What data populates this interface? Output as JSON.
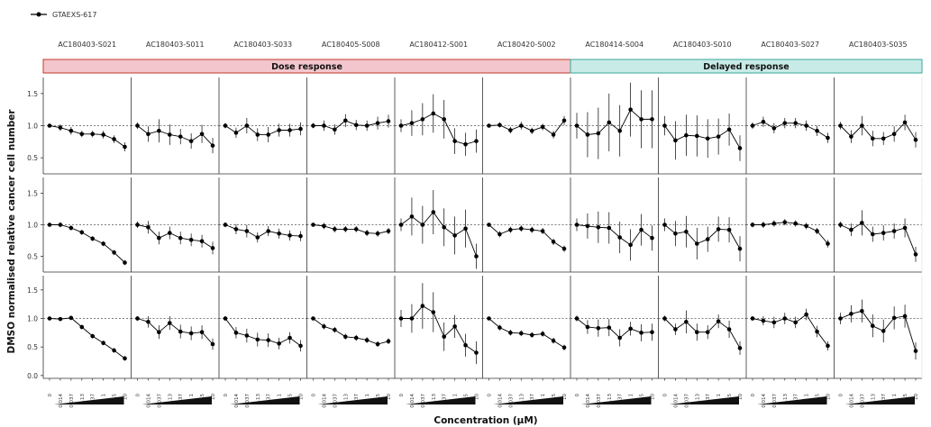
{
  "legend": {
    "label": "GTAEXS-617"
  },
  "row_labels": [
    "",
    "",
    ""
  ],
  "groups": [
    {
      "label": "Dose response",
      "fill": "#f2c6cc",
      "border": "#c0392b",
      "first": 0,
      "last": 5
    },
    {
      "label": "Delayed response",
      "fill": "#c8ebe7",
      "border": "#39a99a",
      "first": 6,
      "last": 9
    }
  ],
  "colors": {
    "series": "#000000",
    "reference": "#555555",
    "panel_border": "#333333",
    "dose_wedge": "#111111"
  },
  "chart_data": {
    "type": "line",
    "xlabel": "Concentration (μM)",
    "ylabel": "DMSO normalised relative cancer cell number",
    "ylim": [
      0,
      1.75
    ],
    "yticks": [
      0.0,
      0.5,
      1.0,
      1.5
    ],
    "reference_y": 1.0,
    "x": [
      "0",
      "0.014",
      "0.037",
      "0.13",
      "0.37",
      "1",
      "3.5",
      "10"
    ],
    "x_tick_labels": [
      "0",
      "0.014",
      "0.037",
      "0.13",
      "0.37",
      "1",
      "3.5",
      "10"
    ],
    "grid": false,
    "legend_placement": "top-left",
    "series_name": "GTAEXS-617",
    "columns": [
      "AC180403-S021",
      "AC180403-S011",
      "AC180403-S033",
      "AC180405-S008",
      "AC180412-S001",
      "AC180420-S002",
      "AC180414-S004",
      "AC180403-S010",
      "AC180403-S027",
      "AC180403-S035"
    ],
    "rows": [
      {
        "ylim": [
          0.25,
          1.75
        ],
        "yticks": [
          0.5,
          1.0,
          1.5
        ],
        "panels": [
          {
            "values": [
              1.0,
              0.97,
              0.92,
              0.87,
              0.87,
              0.86,
              0.79,
              0.67
            ],
            "errors": [
              0.02,
              0.05,
              0.06,
              0.05,
              0.05,
              0.06,
              0.06,
              0.07
            ]
          },
          {
            "values": [
              1.0,
              0.87,
              0.92,
              0.86,
              0.83,
              0.76,
              0.87,
              0.69
            ],
            "errors": [
              0.05,
              0.12,
              0.18,
              0.16,
              0.12,
              0.12,
              0.14,
              0.12
            ]
          },
          {
            "values": [
              1.0,
              0.89,
              1.0,
              0.86,
              0.86,
              0.93,
              0.93,
              0.95
            ],
            "errors": [
              0.04,
              0.08,
              0.12,
              0.1,
              0.12,
              0.1,
              0.1,
              0.1
            ]
          },
          {
            "values": [
              1.0,
              1.0,
              0.94,
              1.08,
              1.01,
              1.0,
              1.04,
              1.07
            ],
            "errors": [
              0.04,
              0.08,
              0.08,
              0.1,
              0.08,
              0.08,
              0.1,
              0.1
            ]
          },
          {
            "values": [
              1.0,
              1.04,
              1.1,
              1.19,
              1.1,
              0.76,
              0.71,
              0.76
            ],
            "errors": [
              0.1,
              0.2,
              0.25,
              0.3,
              0.3,
              0.2,
              0.18,
              0.18
            ]
          },
          {
            "values": [
              1.0,
              1.01,
              0.93,
              1.0,
              0.92,
              0.98,
              0.86,
              1.08
            ],
            "errors": [
              0.02,
              0.04,
              0.05,
              0.06,
              0.05,
              0.05,
              0.06,
              0.07
            ]
          },
          {
            "values": [
              1.0,
              0.86,
              0.88,
              1.05,
              0.92,
              1.25,
              1.1,
              1.1
            ],
            "errors": [
              0.2,
              0.35,
              0.4,
              0.45,
              0.4,
              0.42,
              0.45,
              0.45
            ]
          },
          {
            "values": [
              1.0,
              0.77,
              0.85,
              0.84,
              0.8,
              0.83,
              0.94,
              0.65
            ],
            "errors": [
              0.15,
              0.3,
              0.32,
              0.32,
              0.3,
              0.28,
              0.25,
              0.2
            ]
          },
          {
            "values": [
              1.0,
              1.06,
              0.96,
              1.04,
              1.04,
              1.0,
              0.92,
              0.81
            ],
            "errors": [
              0.05,
              0.08,
              0.08,
              0.08,
              0.08,
              0.08,
              0.08,
              0.08
            ]
          },
          {
            "values": [
              1.0,
              0.83,
              1.0,
              0.8,
              0.8,
              0.87,
              1.05,
              0.78
            ],
            "errors": [
              0.06,
              0.1,
              0.15,
              0.12,
              0.1,
              0.12,
              0.12,
              0.12
            ]
          }
        ]
      },
      {
        "ylim": [
          0.25,
          1.75
        ],
        "yticks": [
          0.5,
          1.0,
          1.5
        ],
        "panels": [
          {
            "values": [
              1.0,
              1.0,
              0.95,
              0.88,
              0.78,
              0.7,
              0.56,
              0.4
            ],
            "errors": [
              0.03,
              0.04,
              0.04,
              0.04,
              0.04,
              0.04,
              0.04,
              0.04
            ]
          },
          {
            "values": [
              1.0,
              0.96,
              0.79,
              0.87,
              0.79,
              0.76,
              0.74,
              0.63
            ],
            "errors": [
              0.05,
              0.1,
              0.1,
              0.1,
              0.1,
              0.1,
              0.1,
              0.1
            ]
          },
          {
            "values": [
              1.0,
              0.93,
              0.9,
              0.8,
              0.9,
              0.86,
              0.83,
              0.82
            ],
            "errors": [
              0.04,
              0.08,
              0.1,
              0.08,
              0.08,
              0.08,
              0.08,
              0.08
            ]
          },
          {
            "values": [
              1.0,
              0.98,
              0.93,
              0.93,
              0.93,
              0.87,
              0.86,
              0.9
            ],
            "errors": [
              0.03,
              0.05,
              0.05,
              0.05,
              0.05,
              0.05,
              0.05,
              0.05
            ]
          },
          {
            "values": [
              1.0,
              1.13,
              1.0,
              1.2,
              0.96,
              0.83,
              0.94,
              0.5
            ],
            "errors": [
              0.1,
              0.3,
              0.3,
              0.35,
              0.3,
              0.3,
              0.3,
              0.2
            ]
          },
          {
            "values": [
              1.0,
              0.85,
              0.92,
              0.94,
              0.92,
              0.9,
              0.73,
              0.62
            ],
            "errors": [
              0.03,
              0.05,
              0.05,
              0.05,
              0.05,
              0.05,
              0.05,
              0.05
            ]
          },
          {
            "values": [
              1.0,
              0.98,
              0.96,
              0.95,
              0.8,
              0.68,
              0.92,
              0.79
            ],
            "errors": [
              0.1,
              0.2,
              0.25,
              0.25,
              0.25,
              0.25,
              0.25,
              0.2
            ]
          },
          {
            "values": [
              1.0,
              0.86,
              0.89,
              0.7,
              0.77,
              0.93,
              0.92,
              0.62
            ],
            "errors": [
              0.1,
              0.2,
              0.25,
              0.25,
              0.2,
              0.2,
              0.2,
              0.2
            ]
          },
          {
            "values": [
              1.0,
              1.0,
              1.02,
              1.04,
              1.02,
              0.98,
              0.9,
              0.7
            ],
            "errors": [
              0.04,
              0.05,
              0.05,
              0.05,
              0.05,
              0.05,
              0.05,
              0.06
            ]
          },
          {
            "values": [
              1.0,
              0.92,
              1.03,
              0.85,
              0.87,
              0.9,
              0.95,
              0.53
            ],
            "errors": [
              0.05,
              0.1,
              0.2,
              0.12,
              0.12,
              0.12,
              0.15,
              0.12
            ]
          }
        ]
      },
      {
        "ylim": [
          -0.05,
          1.75
        ],
        "yticks": [
          0.0,
          0.5,
          1.0,
          1.5
        ],
        "panels": [
          {
            "values": [
              1.0,
              0.99,
              1.01,
              0.85,
              0.69,
              0.57,
              0.44,
              0.3
            ],
            "errors": [
              0.02,
              0.03,
              0.04,
              0.04,
              0.04,
              0.04,
              0.04,
              0.04
            ]
          },
          {
            "values": [
              1.0,
              0.94,
              0.76,
              0.92,
              0.77,
              0.74,
              0.76,
              0.55
            ],
            "errors": [
              0.04,
              0.1,
              0.12,
              0.12,
              0.12,
              0.12,
              0.12,
              0.1
            ]
          },
          {
            "values": [
              1.0,
              0.75,
              0.7,
              0.63,
              0.62,
              0.56,
              0.66,
              0.52
            ],
            "errors": [
              0.04,
              0.1,
              0.12,
              0.12,
              0.12,
              0.1,
              0.1,
              0.1
            ]
          },
          {
            "values": [
              1.0,
              0.86,
              0.8,
              0.68,
              0.66,
              0.62,
              0.55,
              0.6
            ],
            "errors": [
              0.03,
              0.05,
              0.05,
              0.05,
              0.05,
              0.05,
              0.05,
              0.05
            ]
          },
          {
            "values": [
              1.0,
              1.0,
              1.22,
              1.11,
              0.68,
              0.86,
              0.53,
              0.4
            ],
            "errors": [
              0.15,
              0.25,
              0.4,
              0.35,
              0.25,
              0.2,
              0.2,
              0.2
            ]
          },
          {
            "values": [
              1.0,
              0.84,
              0.75,
              0.74,
              0.71,
              0.73,
              0.61,
              0.49
            ],
            "errors": [
              0.03,
              0.05,
              0.05,
              0.05,
              0.05,
              0.05,
              0.05,
              0.05
            ]
          },
          {
            "values": [
              1.0,
              0.85,
              0.83,
              0.84,
              0.66,
              0.82,
              0.75,
              0.76
            ],
            "errors": [
              0.05,
              0.12,
              0.15,
              0.15,
              0.15,
              0.12,
              0.15,
              0.15
            ]
          },
          {
            "values": [
              1.0,
              0.81,
              0.94,
              0.76,
              0.76,
              0.95,
              0.81,
              0.48
            ],
            "errors": [
              0.05,
              0.1,
              0.2,
              0.15,
              0.12,
              0.12,
              0.15,
              0.12
            ]
          },
          {
            "values": [
              1.0,
              0.96,
              0.93,
              1.0,
              0.93,
              1.07,
              0.77,
              0.52
            ],
            "errors": [
              0.04,
              0.08,
              0.1,
              0.1,
              0.1,
              0.1,
              0.1,
              0.08
            ]
          },
          {
            "values": [
              1.0,
              1.08,
              1.13,
              0.87,
              0.78,
              1.01,
              1.04,
              0.43
            ],
            "errors": [
              0.1,
              0.15,
              0.2,
              0.2,
              0.2,
              0.2,
              0.2,
              0.15
            ]
          }
        ]
      }
    ]
  }
}
